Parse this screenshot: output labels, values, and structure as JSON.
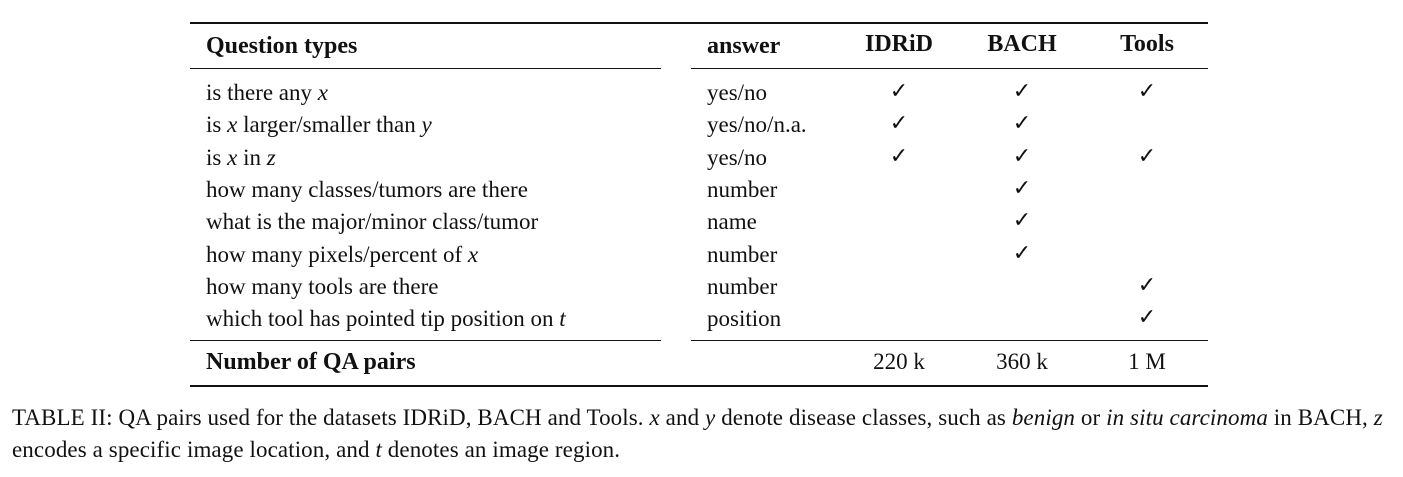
{
  "table": {
    "headers": {
      "question_types": "Question types",
      "answer": "answer",
      "idrid": "IDRiD",
      "bach": "BACH",
      "tools": "Tools"
    },
    "rows": [
      {
        "q_pre": "is there any ",
        "q_var": "x",
        "q_post": "",
        "q_var2": "",
        "q_post2": "",
        "answer": "yes/no",
        "idrid": "✓",
        "bach": "✓",
        "tools": "✓"
      },
      {
        "q_pre": "is ",
        "q_var": "x",
        "q_post": " larger/smaller than ",
        "q_var2": "y",
        "q_post2": "",
        "answer": "yes/no/n.a.",
        "idrid": "✓",
        "bach": "✓",
        "tools": ""
      },
      {
        "q_pre": "is ",
        "q_var": "x",
        "q_post": " in ",
        "q_var2": "z",
        "q_post2": "",
        "answer": "yes/no",
        "idrid": "✓",
        "bach": "✓",
        "tools": "✓"
      },
      {
        "q_pre": "how many classes/tumors are there",
        "q_var": "",
        "q_post": "",
        "q_var2": "",
        "q_post2": "",
        "answer": "number",
        "idrid": "",
        "bach": "✓",
        "tools": ""
      },
      {
        "q_pre": "what is the major/minor class/tumor",
        "q_var": "",
        "q_post": "",
        "q_var2": "",
        "q_post2": "",
        "answer": "name",
        "idrid": "",
        "bach": "✓",
        "tools": ""
      },
      {
        "q_pre": "how many pixels/percent of ",
        "q_var": "x",
        "q_post": "",
        "q_var2": "",
        "q_post2": "",
        "answer": "number",
        "idrid": "",
        "bach": "✓",
        "tools": ""
      },
      {
        "q_pre": "how many tools are there",
        "q_var": "",
        "q_post": "",
        "q_var2": "",
        "q_post2": "",
        "answer": "number",
        "idrid": "",
        "bach": "",
        "tools": "✓"
      },
      {
        "q_pre": "which tool has pointed tip position on ",
        "q_var": "t",
        "q_post": "",
        "q_var2": "",
        "q_post2": "",
        "answer": "position",
        "idrid": "",
        "bach": "",
        "tools": "✓"
      }
    ],
    "footer": {
      "label": "Number of QA pairs",
      "idrid": "220 k",
      "bach": "360 k",
      "tools": "1 M"
    }
  },
  "caption": {
    "label": "TABLE II:",
    "t1": " QA pairs used for the datasets IDRiD, BACH and Tools. ",
    "v_x": "x",
    "t2": " and ",
    "v_y": "y",
    "t3": " denote disease classes, such as ",
    "e1": "benign",
    "t4": " or ",
    "e2": "in situ carcinoma",
    "t5": " in BACH, ",
    "v_z": "z",
    "t6": " encodes a specific image location, and ",
    "v_t": "t",
    "t7": " denotes an image region."
  }
}
